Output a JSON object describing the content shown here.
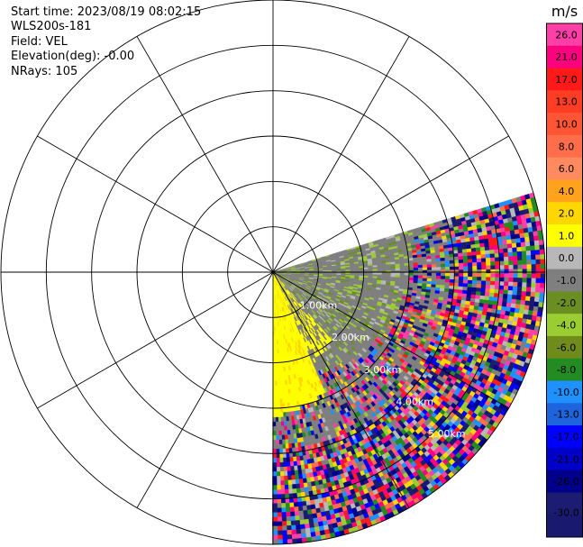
{
  "info": {
    "start_time": "Start time: 2023/08/19 08:02:15",
    "instrument": "WLS200s-181",
    "field": "Field: VEL",
    "elevation": "Elevation(deg): -0.00",
    "nrays": "NRays: 105"
  },
  "chart_data": {
    "type": "heatmap",
    "projection": "polar-ppi",
    "field": "VEL",
    "units": "m/s",
    "azimuth_range_deg": [
      73,
      180
    ],
    "num_rays": 105,
    "max_range_km": 6.0,
    "range_rings_km": [
      1,
      2,
      3,
      4,
      5,
      6
    ],
    "range_labels": [
      "1.00km",
      "2.00km",
      "3.00km",
      "4.00km",
      "5.00km"
    ],
    "spokes_every_deg": 30,
    "colorbar": {
      "title": "m/s",
      "ticks": [
        "26.0",
        "21.0",
        "17.0",
        "13.0",
        "10.0",
        "8.0",
        "6.0",
        "4.0",
        "2.0",
        "1.0",
        "0.0",
        "-1.0",
        "-2.0",
        "-4.0",
        "-6.0",
        "-8.0",
        "-10.0",
        "-13.0",
        "-17.0",
        "-21.0",
        "-26.0",
        "-30.0"
      ],
      "colors": [
        "#ff3fa8",
        "#ff007f",
        "#ff1a1a",
        "#ff3c24",
        "#ff5535",
        "#ff6d4a",
        "#ff8a5e",
        "#ffa31f",
        "#ffd700",
        "#ffff00",
        "#b8b8b8",
        "#7f7f7f",
        "#6b8e23",
        "#9acd32",
        "#6e8b1c",
        "#228b22",
        "#1e90ff",
        "#1e64dc",
        "#0000ff",
        "#0000c8",
        "#00008b",
        "#1c1c73",
        "#191970"
      ]
    }
  }
}
